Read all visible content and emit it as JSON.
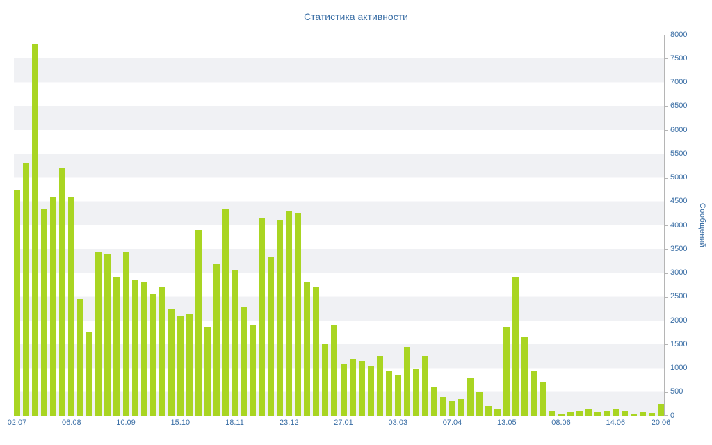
{
  "chart_data": {
    "type": "bar",
    "title": "Статистика активности",
    "xlabel": "",
    "ylabel": "Сообщений",
    "ylim": [
      0,
      8000
    ],
    "y_ticks": [
      0,
      500,
      1000,
      1500,
      2000,
      2500,
      3000,
      3500,
      4000,
      4500,
      5000,
      5500,
      6000,
      6500,
      7000,
      7500,
      8000
    ],
    "grid": "striped-bands",
    "legend": "none",
    "bar_color": "#a9d522",
    "axis_text_color": "#3a6ea5",
    "stripe_color": "#f0f1f4",
    "x_labels": [
      {
        "index": 0,
        "label": "02.07"
      },
      {
        "index": 6,
        "label": "06.08"
      },
      {
        "index": 12,
        "label": "10.09"
      },
      {
        "index": 18,
        "label": "15.10"
      },
      {
        "index": 24,
        "label": "18.11"
      },
      {
        "index": 30,
        "label": "23.12"
      },
      {
        "index": 36,
        "label": "27.01"
      },
      {
        "index": 42,
        "label": "03.03"
      },
      {
        "index": 48,
        "label": "07.04"
      },
      {
        "index": 54,
        "label": "13.05"
      },
      {
        "index": 60,
        "label": "08.06"
      },
      {
        "index": 66,
        "label": "14.06"
      },
      {
        "index": 71,
        "label": "20.06"
      }
    ],
    "values": [
      4750,
      5300,
      7800,
      4350,
      4600,
      5200,
      4600,
      2450,
      1750,
      3450,
      3400,
      2900,
      3450,
      2850,
      2800,
      2550,
      2700,
      2250,
      2100,
      2150,
      3900,
      1850,
      3200,
      4350,
      3050,
      2300,
      1900,
      4150,
      3350,
      4100,
      4300,
      4250,
      2800,
      2700,
      1500,
      1900,
      1100,
      1200,
      1150,
      1050,
      1250,
      950,
      850,
      1450,
      1000,
      1250,
      600,
      400,
      300,
      350,
      800,
      500,
      200,
      150,
      1850,
      2900,
      1650,
      950,
      700,
      100,
      30,
      80,
      100,
      150,
      80,
      100,
      150,
      100,
      50,
      80,
      60,
      250
    ]
  }
}
